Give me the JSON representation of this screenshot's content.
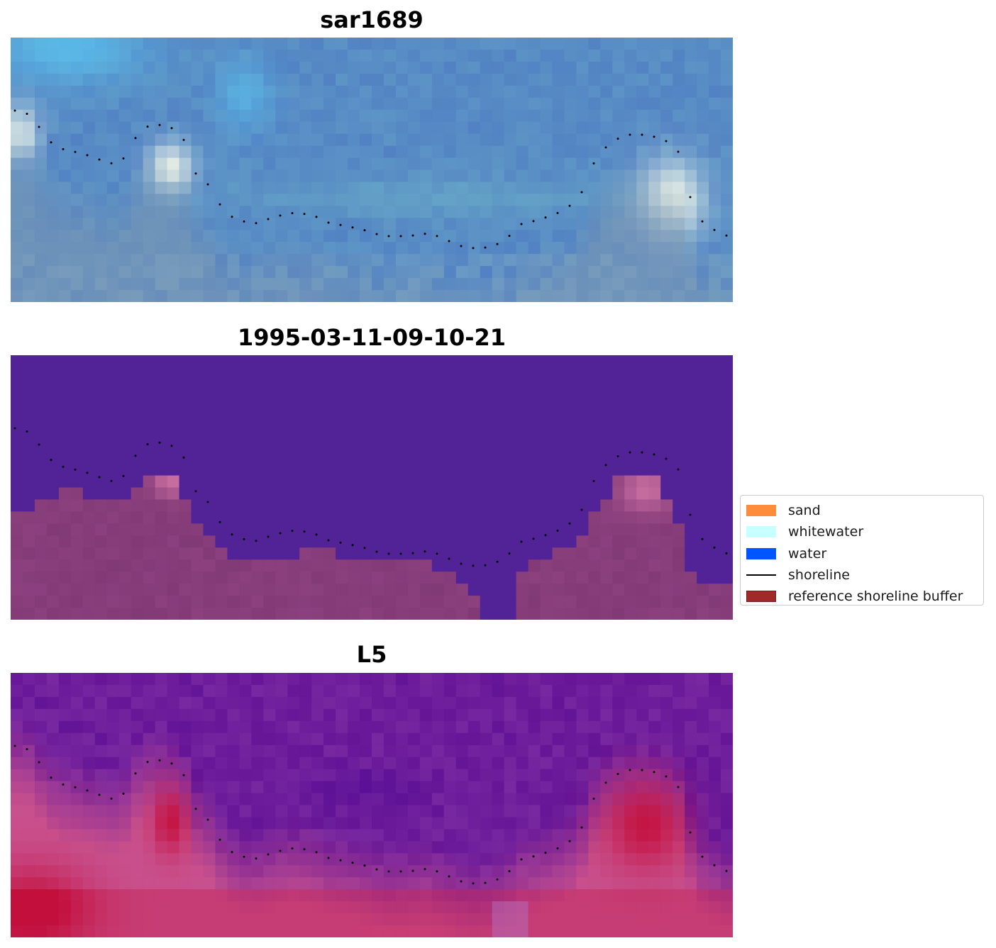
{
  "panels": [
    {
      "title": "sar1689",
      "variant": "rgb"
    },
    {
      "title": "1995-03-11-09-10-21",
      "variant": "classified"
    },
    {
      "title": "L5",
      "variant": "index"
    }
  ],
  "legend": {
    "items": [
      {
        "label": "sand",
        "color": "#ff8c3a",
        "kind": "patch"
      },
      {
        "label": "whitewater",
        "color": "#c8ffff",
        "kind": "patch"
      },
      {
        "label": "water",
        "color": "#0055ff",
        "kind": "patch"
      },
      {
        "label": "shoreline",
        "color": "#000000",
        "kind": "line"
      },
      {
        "label": "reference shoreline buffer",
        "color": "#9e2a2a",
        "kind": "patch",
        "edge": "#7a1a1a"
      }
    ]
  }
}
